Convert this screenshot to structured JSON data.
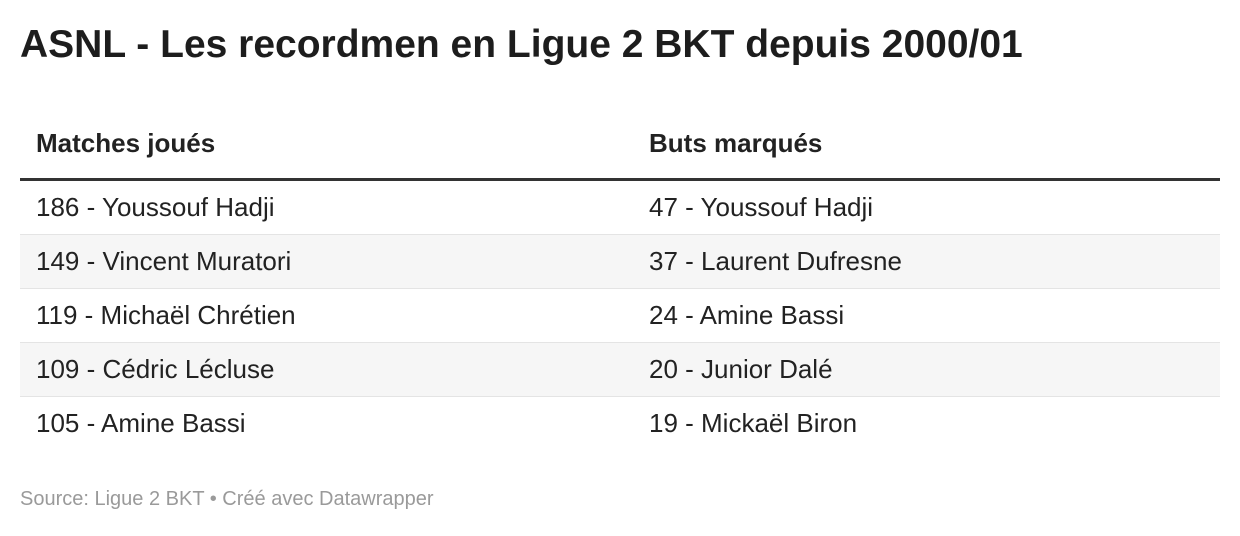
{
  "header": {
    "title": "ASNL - Les recordmen en Ligue 2 BKT depuis 2000/01"
  },
  "table": {
    "columns": [
      "Matches joués",
      "Buts marqués"
    ],
    "rows": [
      [
        "186 - Youssouf Hadji",
        "47 - Youssouf Hadji"
      ],
      [
        "149 - Vincent Muratori",
        "37 - Laurent Dufresne"
      ],
      [
        "119 - Michaël Chrétien",
        "24 - Amine Bassi"
      ],
      [
        "109 - Cédric Lécluse",
        "20 - Junior Dalé"
      ],
      [
        "105 - Amine Bassi",
        "19 - Mickaël Biron"
      ]
    ]
  },
  "footer": {
    "source": "Source: Ligue 2 BKT • Créé avec Datawrapper"
  }
}
